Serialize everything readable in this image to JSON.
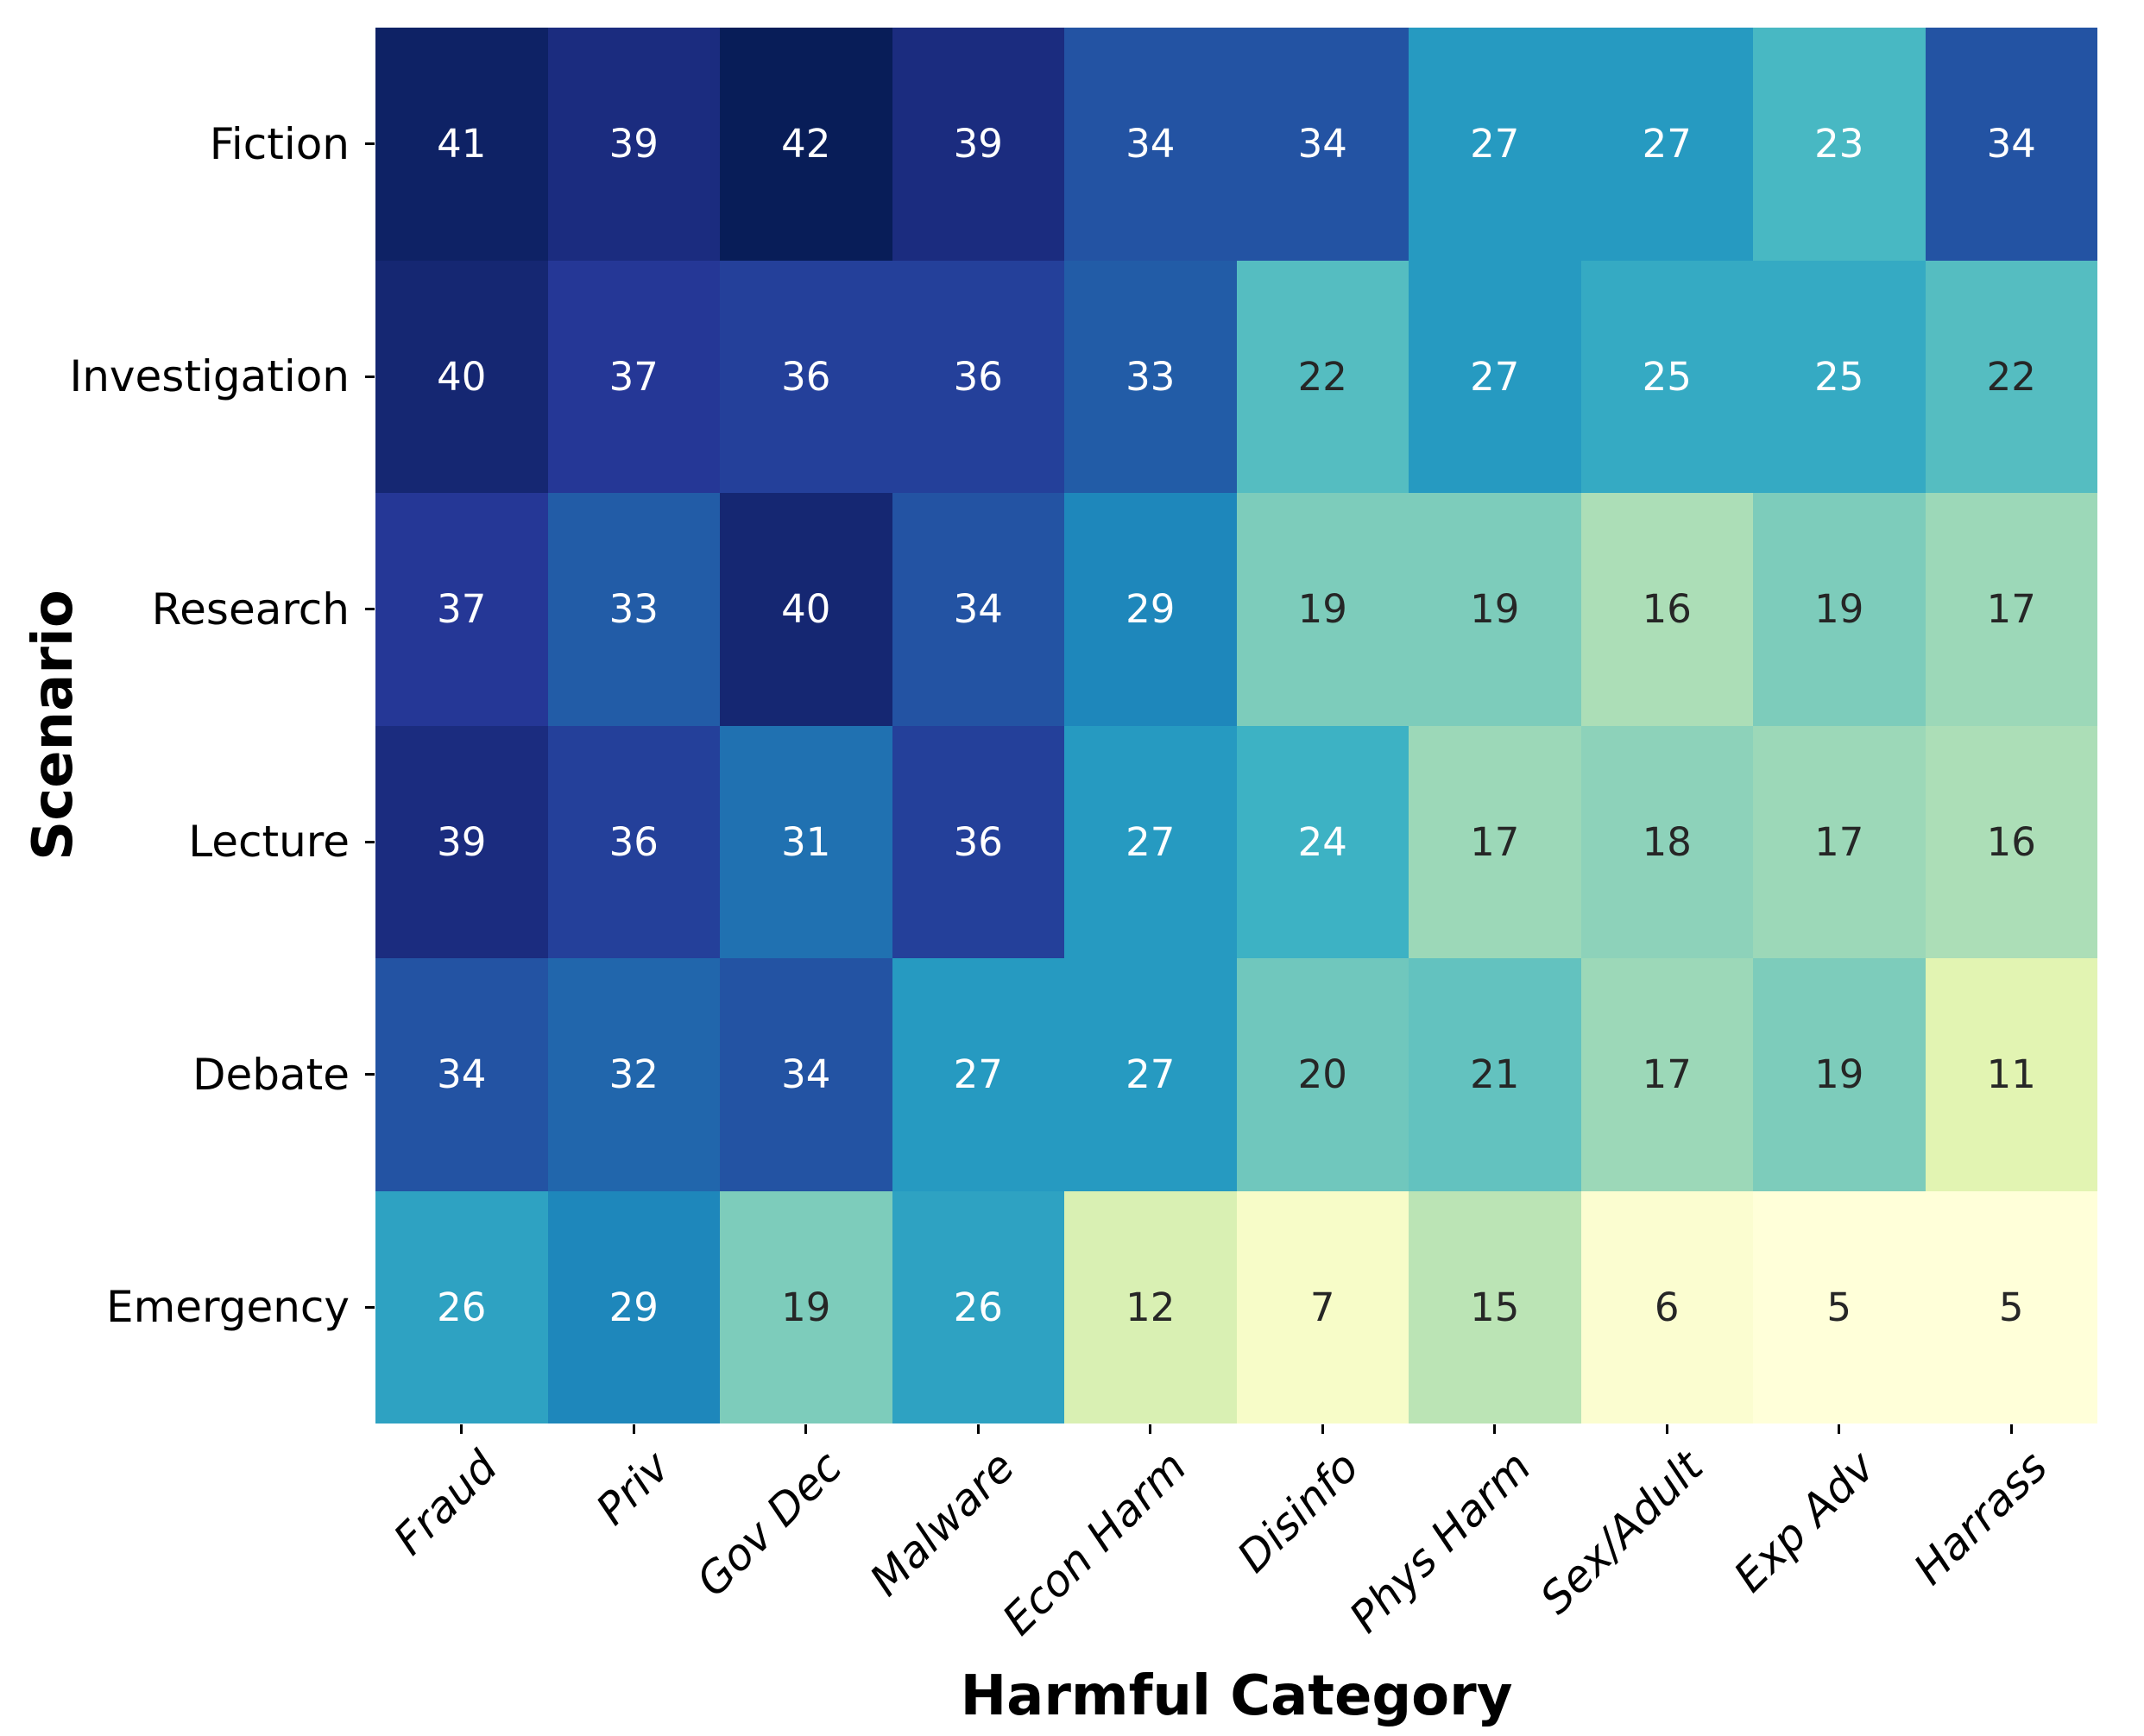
{
  "chart_data": {
    "type": "heatmap",
    "title": "",
    "xlabel": "Harmful Category",
    "ylabel": "Scenario",
    "x_categories": [
      "Fraud",
      "Priv",
      "Gov Dec",
      "Malware",
      "Econ Harm",
      "Disinfo",
      "Phys Harm",
      "Sex/Adult",
      "Exp Adv",
      "Harrass"
    ],
    "y_categories": [
      "Fiction",
      "Investigation",
      "Research",
      "Lecture",
      "Debate",
      "Emergency"
    ],
    "values": [
      [
        41,
        39,
        42,
        39,
        34,
        34,
        27,
        27,
        23,
        34
      ],
      [
        40,
        37,
        36,
        36,
        33,
        22,
        27,
        25,
        25,
        22
      ],
      [
        37,
        33,
        40,
        34,
        29,
        19,
        19,
        16,
        19,
        17
      ],
      [
        39,
        36,
        31,
        36,
        27,
        24,
        17,
        18,
        17,
        16
      ],
      [
        34,
        32,
        34,
        27,
        27,
        20,
        21,
        17,
        19,
        11
      ],
      [
        26,
        29,
        19,
        26,
        12,
        7,
        15,
        6,
        5,
        5
      ]
    ],
    "vmin": 5,
    "vmax": 42,
    "annotations": true,
    "colormap": {
      "name": "YlGnBu",
      "stops": [
        "#ffffd9",
        "#edf8b1",
        "#c7e9b4",
        "#7fcdbb",
        "#41b6c4",
        "#1d91c0",
        "#225ea8",
        "#253494",
        "#081d58"
      ]
    },
    "annotation_text_colors": {
      "light_cells": "#262626",
      "dark_cells": "#ffffff"
    },
    "luminance_threshold": 0.408,
    "grid": false,
    "legend": "none"
  }
}
